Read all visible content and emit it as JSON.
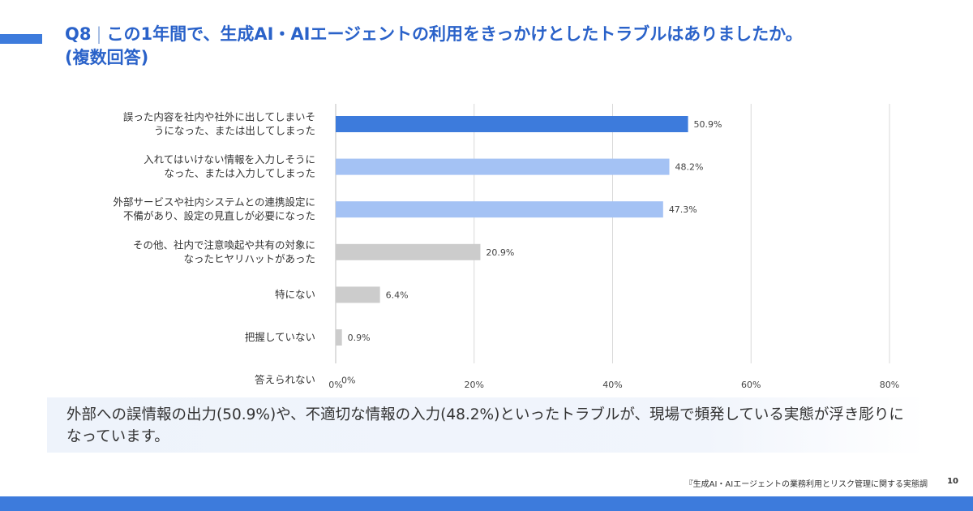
{
  "header": {
    "question_number": "Q8",
    "separator": "|",
    "question_text": "この1年間で、生成AI・AIエージェントの利用をきっかけとしたトラブルはありましたか。",
    "note": "(複数回答)"
  },
  "chart_data": {
    "type": "bar",
    "orientation": "horizontal",
    "categories": [
      [
        "誤った内容を社内や社外に出してしまいそ",
        "うになった、または出してしまった"
      ],
      [
        "入れてはいけない情報を入力しそうに",
        "なった、または入力してしまった"
      ],
      [
        "外部サービスや社内システムとの連携設定に",
        "不備があり、設定の見直しが必要になった"
      ],
      [
        "その他、社内で注意喚起や共有の対象に",
        "なったヒヤリハットがあった"
      ],
      [
        "特にない"
      ],
      [
        "把握していない"
      ],
      [
        "答えられない"
      ]
    ],
    "values": [
      50.9,
      48.2,
      47.3,
      20.9,
      6.4,
      0.9,
      0
    ],
    "value_labels": [
      "50.9%",
      "48.2%",
      "47.3%",
      "20.9%",
      "6.4%",
      "0.9%",
      "0%"
    ],
    "bar_colors": [
      "#3d7bdc",
      "#a4c2f4",
      "#a4c2f4",
      "#cccccc",
      "#cccccc",
      "#cccccc",
      "#cccccc"
    ],
    "xlim": [
      0,
      80
    ],
    "xticks": [
      0,
      20,
      40,
      60,
      80
    ],
    "xtick_labels": [
      "0%",
      "20%",
      "40%",
      "60%",
      "80%"
    ],
    "grid": true,
    "legend": "none"
  },
  "summary": {
    "text": "外部への誤情報の出力(50.9%)や、不適切な情報の入力(48.2%)といったトラブルが、現場で頻発している実態が浮き彫りになっています。"
  },
  "footer": {
    "source": "『生成AI・AIエージェントの業務利用とリスク管理に関する実態調",
    "page_number": "10"
  },
  "colors": {
    "brand_blue": "#3d7bdc",
    "title_blue": "#2a62c9",
    "summary_background": "#eef3fb"
  }
}
